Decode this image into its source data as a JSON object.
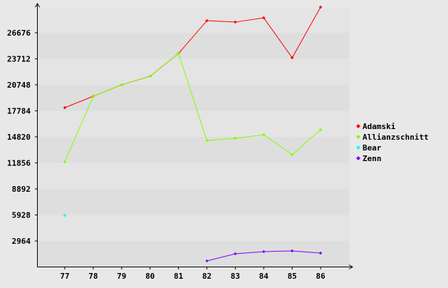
{
  "chart_data": {
    "type": "line",
    "title": "",
    "xlabel": "",
    "ylabel": "",
    "x": [
      77,
      78,
      79,
      80,
      81,
      82,
      83,
      84,
      85,
      86
    ],
    "x_tick_labels": [
      "77",
      "78",
      "79",
      "80",
      "81",
      "82",
      "83",
      "84",
      "85",
      "86"
    ],
    "y_ticks": [
      2964,
      5928,
      8892,
      11856,
      14820,
      17784,
      20748,
      23712,
      26676
    ],
    "ylim": [
      0,
      29600
    ],
    "grid": "alternating horizontal bands",
    "legend_position": "right",
    "series": [
      {
        "name": "Adamski",
        "color": "#ff0000",
        "values": [
          18150,
          19450,
          20750,
          21720,
          24320,
          28060,
          27900,
          28380,
          23830,
          29600
        ]
      },
      {
        "name": "Allianzschnitt",
        "color": "#80ff00",
        "values": [
          11980,
          19450,
          20750,
          21720,
          24320,
          14410,
          14650,
          15060,
          12790,
          15630
        ]
      },
      {
        "name": "Bear",
        "color": "#00ffff",
        "values": [
          5890,
          null,
          null,
          null,
          null,
          null,
          null,
          null,
          null,
          null
        ]
      },
      {
        "name": "Zenn",
        "color": "#8000ff",
        "values": [
          null,
          null,
          null,
          null,
          null,
          690,
          1500,
          1750,
          1830,
          1580
        ]
      }
    ]
  }
}
